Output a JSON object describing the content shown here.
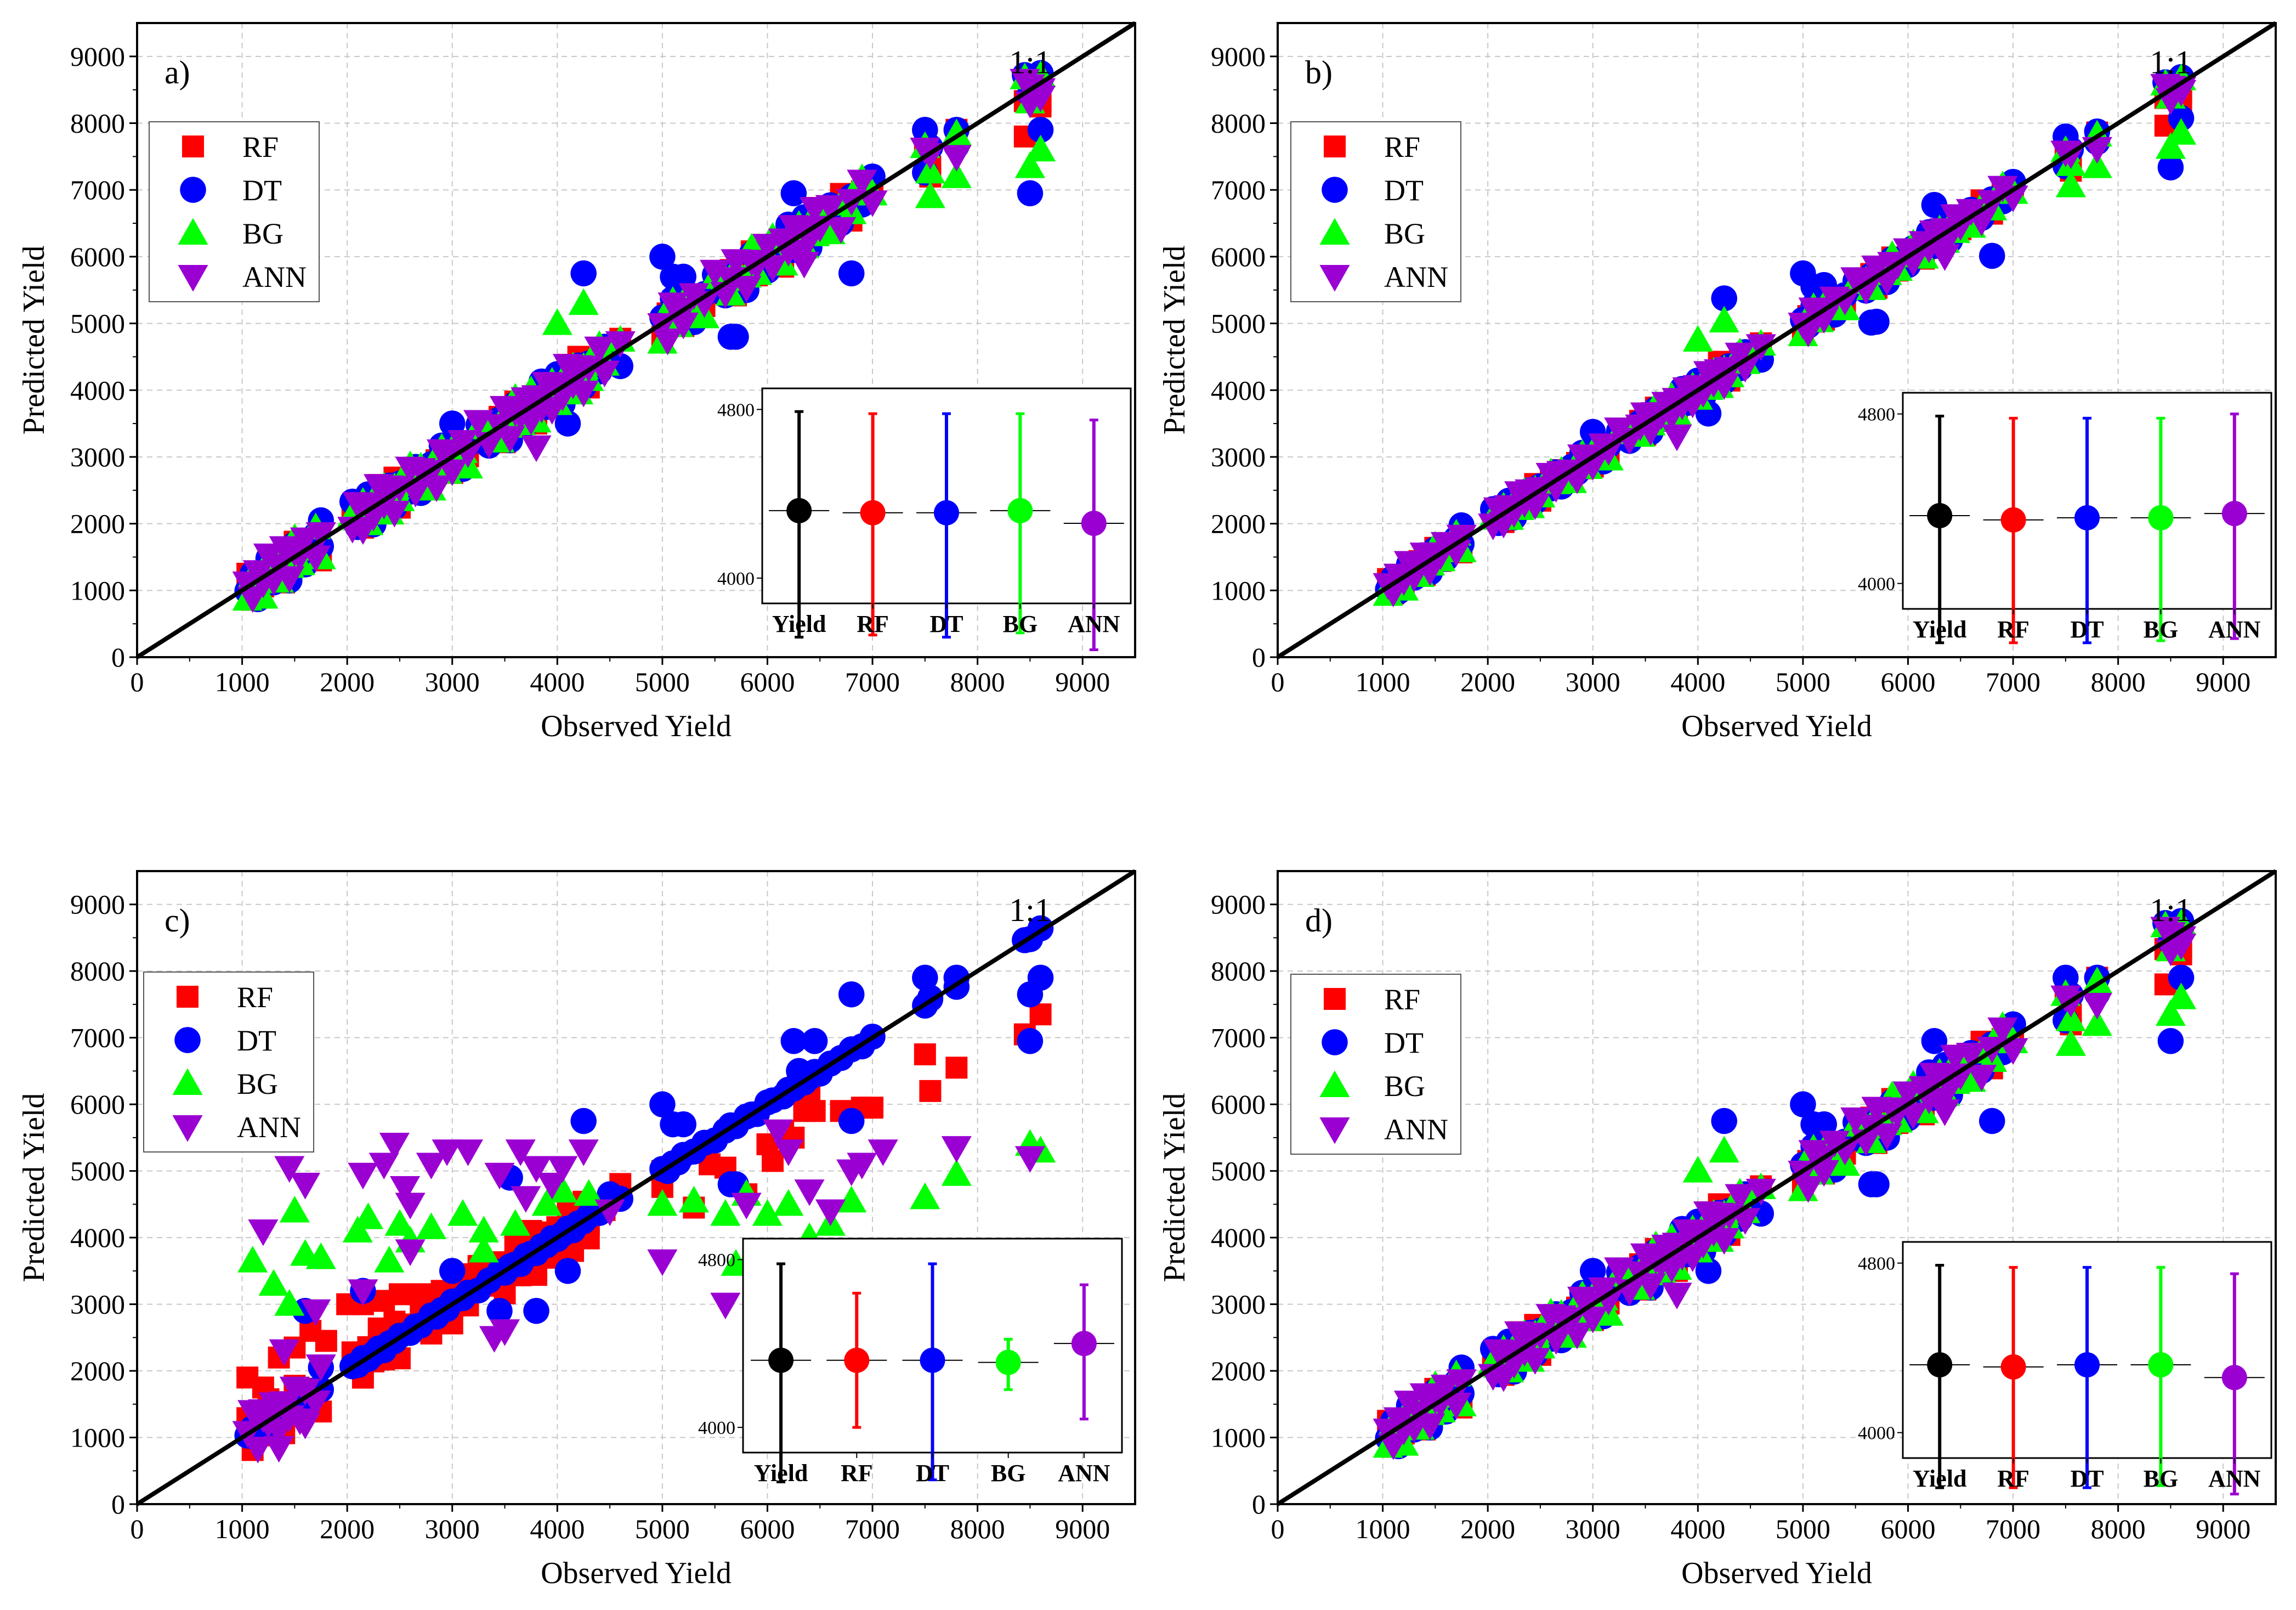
{
  "colors": {
    "RF": "#ff0000",
    "DT": "#0000ff",
    "BG": "#00ff00",
    "ANN": "#9b00d3",
    "Yield": "#000000"
  },
  "chart_data": [
    {
      "panel": "a)",
      "type": "scatter",
      "xlabel": "Observed Yield",
      "ylabel": "Predicted Yield",
      "xlim": [
        0,
        9500
      ],
      "ylim": [
        0,
        9500
      ],
      "xticks": [
        0,
        1000,
        2000,
        3000,
        4000,
        5000,
        6000,
        7000,
        8000,
        9000
      ],
      "yticks": [
        0,
        1000,
        2000,
        3000,
        4000,
        5000,
        6000,
        7000,
        8000,
        9000
      ],
      "line_label": "1:1",
      "legend": [
        "RF",
        "DT",
        "BG",
        "ANN"
      ],
      "legend_position": "top-left",
      "quality": "good",
      "inset": {
        "type": "mean-errorbar",
        "categories": [
          "Yield",
          "RF",
          "DT",
          "BG",
          "ANN"
        ],
        "y_ticks": [
          4000,
          4800
        ],
        "ylim": [
          3880,
          4900
        ],
        "means": [
          4320,
          4310,
          4310,
          4320,
          4260
        ],
        "lower": [
          3720,
          3730,
          3720,
          3740,
          3660
        ],
        "upper": [
          4790,
          4780,
          4780,
          4780,
          4750
        ]
      }
    },
    {
      "panel": "b)",
      "type": "scatter",
      "xlabel": "Observed Yield",
      "ylabel": "Predicted Yield",
      "xlim": [
        0,
        9500
      ],
      "ylim": [
        0,
        9500
      ],
      "xticks": [
        0,
        1000,
        2000,
        3000,
        4000,
        5000,
        6000,
        7000,
        8000,
        9000
      ],
      "yticks": [
        0,
        1000,
        2000,
        3000,
        4000,
        5000,
        6000,
        7000,
        8000,
        9000
      ],
      "line_label": "1:1",
      "legend": [
        "RF",
        "DT",
        "BG",
        "ANN"
      ],
      "legend_position": "top-left",
      "quality": "best",
      "inset": {
        "type": "mean-errorbar",
        "categories": [
          "Yield",
          "RF",
          "DT",
          "BG",
          "ANN"
        ],
        "y_ticks": [
          4000,
          4800
        ],
        "ylim": [
          3880,
          4900
        ],
        "means": [
          4320,
          4300,
          4310,
          4310,
          4330
        ],
        "lower": [
          3720,
          3720,
          3720,
          3730,
          3740
        ],
        "upper": [
          4790,
          4780,
          4780,
          4780,
          4800
        ]
      }
    },
    {
      "panel": "c)",
      "type": "scatter",
      "xlabel": "Observed Yield",
      "ylabel": "Predicted Yield",
      "xlim": [
        0,
        9500
      ],
      "ylim": [
        0,
        9500
      ],
      "xticks": [
        0,
        1000,
        2000,
        3000,
        4000,
        5000,
        6000,
        7000,
        8000,
        9000
      ],
      "yticks": [
        0,
        1000,
        2000,
        3000,
        4000,
        5000,
        6000,
        7000,
        8000,
        9000
      ],
      "line_label": "1:1",
      "legend": [
        "RF",
        "DT",
        "BG",
        "ANN"
      ],
      "legend_position": "top-left",
      "quality": "poor",
      "inset": {
        "type": "mean-errorbar",
        "categories": [
          "Yield",
          "RF",
          "DT",
          "BG",
          "ANN"
        ],
        "y_ticks": [
          4000,
          4800
        ],
        "ylim": [
          3880,
          4900
        ],
        "means": [
          4320,
          4320,
          4320,
          4310,
          4400
        ],
        "lower": [
          3740,
          4000,
          3750,
          4180,
          4040
        ],
        "upper": [
          4780,
          4640,
          4780,
          4420,
          4680
        ]
      }
    },
    {
      "panel": "d)",
      "type": "scatter",
      "xlabel": "Observed Yield",
      "ylabel": "Predicted Yield",
      "xlim": [
        0,
        9500
      ],
      "ylim": [
        0,
        9500
      ],
      "xticks": [
        0,
        1000,
        2000,
        3000,
        4000,
        5000,
        6000,
        7000,
        8000,
        9000
      ],
      "yticks": [
        0,
        1000,
        2000,
        3000,
        4000,
        5000,
        6000,
        7000,
        8000,
        9000
      ],
      "line_label": "1:1",
      "legend": [
        "RF",
        "DT",
        "BG",
        "ANN"
      ],
      "legend_position": "top-left",
      "quality": "good",
      "inset": {
        "type": "mean-errorbar",
        "categories": [
          "Yield",
          "RF",
          "DT",
          "BG",
          "ANN"
        ],
        "y_ticks": [
          4000,
          4800
        ],
        "ylim": [
          3880,
          4900
        ],
        "means": [
          4320,
          4310,
          4320,
          4320,
          4260
        ],
        "lower": [
          3740,
          3740,
          3740,
          3750,
          3710
        ],
        "upper": [
          4790,
          4780,
          4780,
          4780,
          4750
        ]
      }
    }
  ],
  "observed_yield": [
    1050,
    1100,
    1150,
    1200,
    1250,
    1300,
    1350,
    1400,
    1450,
    1500,
    1550,
    1600,
    1700,
    1750,
    2050,
    2100,
    2150,
    2200,
    2250,
    2300,
    2350,
    2400,
    2450,
    2500,
    2600,
    2650,
    2700,
    2800,
    2850,
    2900,
    2950,
    3000,
    3100,
    3150,
    3250,
    3350,
    3450,
    3500,
    3550,
    3600,
    3650,
    3700,
    3750,
    3800,
    3850,
    3900,
    3950,
    4000,
    4050,
    4100,
    4150,
    4200,
    4250,
    4300,
    4400,
    4450,
    4600,
    5000,
    5050,
    5100,
    5150,
    5200,
    5300,
    5400,
    5500,
    5600,
    5650,
    5700,
    5800,
    5850,
    5900,
    6000,
    6050,
    6150,
    6200,
    6250,
    6300,
    6350,
    6400,
    6450,
    6500,
    6600,
    6700,
    6800,
    6900,
    7000,
    7500,
    7550,
    7800,
    8450,
    8500,
    8600
  ],
  "deviation_offsets": [
    200,
    -240,
    90,
    -140,
    270,
    -60,
    150,
    -280,
    40,
    230,
    -180,
    110,
    -20,
    -300,
    190,
    60,
    -210,
    130,
    -90,
    280,
    -150,
    20,
    240,
    -260,
    80,
    -30,
    170,
    -200,
    100,
    -120
  ],
  "outliers": {
    "DT": [
      [
        4250,
        5750
      ],
      [
        4100,
        3500
      ],
      [
        5000,
        6000
      ],
      [
        5200,
        5700
      ],
      [
        5650,
        4800
      ],
      [
        5700,
        4800
      ],
      [
        6250,
        6950
      ],
      [
        6800,
        5750
      ],
      [
        7500,
        7900
      ],
      [
        7800,
        7900
      ],
      [
        8500,
        6950
      ],
      [
        8600,
        7900
      ],
      [
        1750,
        2050
      ],
      [
        3000,
        3500
      ],
      [
        5100,
        5700
      ]
    ],
    "RF": [
      [
        8450,
        7800
      ],
      [
        8600,
        8250
      ],
      [
        7550,
        7200
      ],
      [
        4200,
        4500
      ]
    ],
    "BG": [
      [
        4000,
        5000
      ],
      [
        4250,
        5300
      ],
      [
        7550,
        6900
      ],
      [
        8500,
        7350
      ],
      [
        8600,
        7600
      ],
      [
        7800,
        7200
      ]
    ],
    "ANN": [
      [
        3800,
        3150
      ],
      [
        5200,
        5200
      ],
      [
        6350,
        5900
      ],
      [
        8600,
        8500
      ],
      [
        8500,
        8300
      ]
    ]
  },
  "panel_c_extra": {
    "ANN": [
      [
        1200,
        4100
      ],
      [
        1450,
        5050
      ],
      [
        1600,
        4800
      ],
      [
        2150,
        4950
      ],
      [
        2350,
        5100
      ],
      [
        2450,
        5400
      ],
      [
        2550,
        4750
      ],
      [
        2800,
        5100
      ],
      [
        2950,
        5300
      ],
      [
        3150,
        5300
      ],
      [
        3450,
        4950
      ],
      [
        3650,
        5300
      ],
      [
        3800,
        5050
      ],
      [
        3950,
        4800
      ],
      [
        4050,
        5050
      ],
      [
        4250,
        5300
      ],
      [
        3700,
        4600
      ],
      [
        2600,
        3800
      ],
      [
        2150,
        3200
      ],
      [
        1400,
        2300
      ],
      [
        1350,
        850
      ],
      [
        1200,
        1400
      ],
      [
        1600,
        1200
      ],
      [
        3400,
        2500
      ],
      [
        3500,
        2600
      ],
      [
        5000,
        3650
      ],
      [
        5600,
        3000
      ],
      [
        6200,
        5300
      ],
      [
        6400,
        4700
      ],
      [
        6800,
        5000
      ],
      [
        7100,
        5300
      ],
      [
        7800,
        5350
      ],
      [
        8500,
        5200
      ],
      [
        5800,
        4500
      ],
      [
        6600,
        4400
      ],
      [
        6900,
        5100
      ],
      [
        6100,
        5600
      ],
      [
        1700,
        2900
      ],
      [
        4500,
        4400
      ],
      [
        2600,
        4500
      ]
    ],
    "BG": [
      [
        1100,
        3650
      ],
      [
        1300,
        3300
      ],
      [
        1450,
        3000
      ],
      [
        1500,
        4400
      ],
      [
        1600,
        3750
      ],
      [
        1750,
        3700
      ],
      [
        2100,
        4100
      ],
      [
        2200,
        4300
      ],
      [
        2400,
        3650
      ],
      [
        2600,
        3950
      ],
      [
        2800,
        4150
      ],
      [
        3100,
        4350
      ],
      [
        3300,
        3800
      ],
      [
        3600,
        4200
      ],
      [
        3900,
        4500
      ],
      [
        4050,
        4700
      ],
      [
        4300,
        4650
      ],
      [
        5000,
        4500
      ],
      [
        5300,
        4550
      ],
      [
        5600,
        4350
      ],
      [
        5800,
        4650
      ],
      [
        6000,
        4350
      ],
      [
        6200,
        4500
      ],
      [
        6400,
        4000
      ],
      [
        6800,
        4550
      ],
      [
        7500,
        4600
      ],
      [
        7800,
        4950
      ],
      [
        8500,
        5400
      ],
      [
        8600,
        5300
      ],
      [
        5700,
        3600
      ],
      [
        2500,
        4200
      ],
      [
        3300,
        4100
      ],
      [
        6600,
        4200
      ]
    ],
    "RF": [
      [
        1050,
        1900
      ],
      [
        1200,
        1750
      ],
      [
        1350,
        2200
      ],
      [
        1500,
        2350
      ],
      [
        1650,
        2600
      ],
      [
        1800,
        2450
      ],
      [
        2000,
        3000
      ],
      [
        2150,
        3000
      ],
      [
        2350,
        3050
      ],
      [
        2500,
        3150
      ],
      [
        2700,
        3150
      ],
      [
        2900,
        3200
      ],
      [
        3150,
        3450
      ],
      [
        3500,
        3400
      ],
      [
        3750,
        4100
      ],
      [
        3950,
        3700
      ],
      [
        4150,
        3800
      ],
      [
        4300,
        4200
      ],
      [
        5000,
        5000
      ],
      [
        5300,
        4450
      ],
      [
        5600,
        5050
      ],
      [
        5800,
        4650
      ],
      [
        6000,
        5400
      ],
      [
        6150,
        5600
      ],
      [
        6250,
        5500
      ],
      [
        6350,
        5900
      ],
      [
        6450,
        5900
      ],
      [
        6700,
        5900
      ],
      [
        6900,
        5950
      ],
      [
        7000,
        5950
      ],
      [
        7500,
        6750
      ],
      [
        7550,
        6200
      ],
      [
        7800,
        6550
      ],
      [
        8450,
        7050
      ],
      [
        8600,
        7350
      ],
      [
        6400,
        6150
      ],
      [
        6050,
        5150
      ],
      [
        5450,
        5100
      ]
    ],
    "DT": [
      [
        1600,
        2900
      ],
      [
        2150,
        3200
      ],
      [
        3450,
        2900
      ],
      [
        3550,
        4900
      ],
      [
        3800,
        2900
      ],
      [
        4500,
        4650
      ],
      [
        5050,
        5000
      ],
      [
        6300,
        6500
      ],
      [
        6450,
        6950
      ],
      [
        6800,
        7650
      ],
      [
        7550,
        7600
      ],
      [
        8500,
        7650
      ]
    ]
  }
}
